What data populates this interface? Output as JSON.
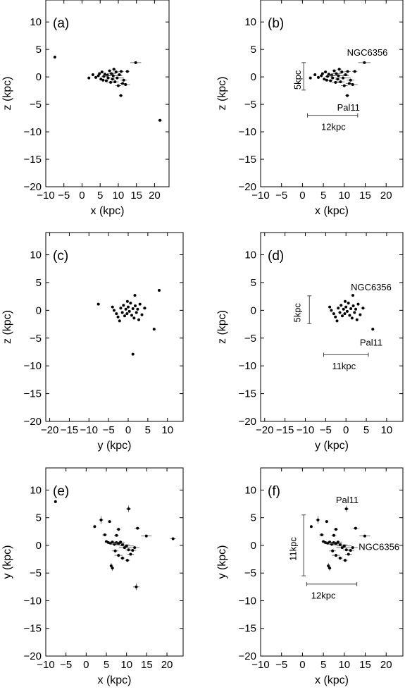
{
  "chart_data": [
    {
      "panel": "(a)",
      "type": "scatter",
      "xlabel": "x (kpc)",
      "ylabel": "z (kpc)",
      "xlim": [
        -10,
        24
      ],
      "ylim": [
        -20,
        14
      ],
      "xticks": [
        -10,
        -5,
        0,
        5,
        10,
        15,
        20
      ],
      "yticks": [
        -20,
        -15,
        -10,
        -5,
        0,
        5,
        10
      ],
      "points": [
        [
          -7.5,
          3.6,
          0.1,
          0.15
        ],
        [
          21.5,
          -7.9,
          0.6,
          0.2
        ],
        [
          14.8,
          2.6,
          1.5,
          0.2
        ],
        [
          10.7,
          -3.4,
          0.5,
          0.15
        ],
        [
          1.9,
          -0.2,
          0,
          0
        ],
        [
          3.0,
          0.4,
          0.3,
          0
        ],
        [
          3.8,
          -0.1,
          0.3,
          0
        ],
        [
          4.5,
          0.2,
          0.3,
          0
        ],
        [
          4.8,
          0.6,
          0.3,
          0
        ],
        [
          5.2,
          -0.4,
          0.3,
          0
        ],
        [
          5.5,
          0.9,
          0.4,
          0
        ],
        [
          5.8,
          -0.6,
          0.4,
          0
        ],
        [
          6.0,
          0.1,
          0.6,
          0
        ],
        [
          6.3,
          0.5,
          0.4,
          0
        ],
        [
          6.7,
          -0.7,
          0.5,
          0
        ],
        [
          7.0,
          0.3,
          0.8,
          0
        ],
        [
          7.2,
          -0.2,
          0.6,
          0
        ],
        [
          7.6,
          1.1,
          0.5,
          0
        ],
        [
          7.9,
          -1.0,
          0.9,
          0
        ],
        [
          8.1,
          0.6,
          1.2,
          0
        ],
        [
          8.4,
          -0.4,
          0.6,
          0
        ],
        [
          8.6,
          0.2,
          2.5,
          0
        ],
        [
          8.8,
          1.4,
          0.5,
          0
        ],
        [
          9.1,
          -0.9,
          1.0,
          0
        ],
        [
          9.4,
          0.9,
          0.7,
          0
        ],
        [
          9.7,
          -0.2,
          1.8,
          0
        ],
        [
          10.0,
          -1.6,
          0.8,
          0
        ],
        [
          10.3,
          0.4,
          0.6,
          0
        ],
        [
          10.8,
          1.0,
          0.7,
          0
        ],
        [
          11.2,
          -1.2,
          0.8,
          0
        ],
        [
          11.5,
          -0.6,
          0.9,
          0
        ],
        [
          12.5,
          1.0,
          0.6,
          0
        ],
        [
          12.0,
          -1.4,
          1.2,
          0
        ]
      ],
      "annotations": []
    },
    {
      "panel": "(b)",
      "type": "scatter",
      "xlabel": "x (kpc)",
      "ylabel": "z (kpc)",
      "xlim": [
        -10,
        24
      ],
      "ylim": [
        -20,
        14
      ],
      "xticks": [
        -10,
        -5,
        0,
        5,
        10,
        15,
        20
      ],
      "yticks": [
        -20,
        -15,
        -10,
        -5,
        0,
        5,
        10
      ],
      "points": [
        [
          14.8,
          2.6,
          1.5,
          0.2
        ],
        [
          10.7,
          -3.4,
          0.5,
          0.15
        ],
        [
          1.9,
          -0.2,
          0,
          0
        ],
        [
          3.0,
          0.4,
          0.3,
          0
        ],
        [
          3.8,
          -0.1,
          0.3,
          0
        ],
        [
          4.5,
          0.2,
          0.3,
          0
        ],
        [
          4.8,
          0.6,
          0.3,
          0
        ],
        [
          5.2,
          -0.4,
          0.3,
          0
        ],
        [
          5.5,
          0.9,
          0.4,
          0
        ],
        [
          5.8,
          -0.6,
          0.4,
          0
        ],
        [
          6.0,
          0.1,
          0.6,
          0
        ],
        [
          6.3,
          0.5,
          0.4,
          0
        ],
        [
          6.7,
          -0.7,
          0.5,
          0
        ],
        [
          7.0,
          0.3,
          0.8,
          0
        ],
        [
          7.2,
          -0.2,
          0.6,
          0
        ],
        [
          7.6,
          1.1,
          0.5,
          0
        ],
        [
          7.9,
          -1.0,
          0.9,
          0
        ],
        [
          8.1,
          0.6,
          1.2,
          0
        ],
        [
          8.4,
          -0.4,
          0.6,
          0
        ],
        [
          8.6,
          0.2,
          2.5,
          0
        ],
        [
          8.8,
          1.4,
          0.5,
          0
        ],
        [
          9.1,
          -0.9,
          1.0,
          0
        ],
        [
          9.4,
          0.9,
          0.7,
          0
        ],
        [
          9.7,
          -0.2,
          1.8,
          0
        ],
        [
          10.0,
          -1.6,
          0.8,
          0
        ],
        [
          10.3,
          0.4,
          0.6,
          0
        ],
        [
          10.8,
          1.0,
          0.7,
          0
        ],
        [
          11.2,
          -1.2,
          0.8,
          0
        ],
        [
          11.5,
          -0.6,
          0.9,
          0
        ],
        [
          12.5,
          1.0,
          0.6,
          0
        ],
        [
          12.0,
          -1.4,
          1.2,
          0
        ]
      ],
      "annotations": [
        {
          "text": "NGC6356",
          "x": 15.5,
          "y": 4.5
        },
        {
          "text": "Pal11",
          "x": 11.0,
          "y": -5.5
        },
        {
          "text": "5kpc",
          "x": -0.4,
          "y": 0.1,
          "rotate": true
        },
        {
          "text": "12kpc",
          "x": 7.4,
          "y": -9.0
        }
      ],
      "scalebars": [
        {
          "orient": "v",
          "at": 0.3,
          "from": -2.4,
          "to": 2.6
        },
        {
          "orient": "h",
          "at": -7.0,
          "from": 1.2,
          "to": 13.2
        }
      ]
    },
    {
      "panel": "(c)",
      "type": "scatter",
      "xlabel": "y (kpc)",
      "ylabel": "z (kpc)",
      "xlim": [
        -21,
        14
      ],
      "ylim": [
        -20,
        14
      ],
      "xticks": [
        -20,
        -15,
        -10,
        -5,
        0,
        5,
        10
      ],
      "yticks": [
        -20,
        -15,
        -10,
        -5,
        0,
        5,
        10
      ],
      "points": [
        [
          -7.6,
          1.1,
          0.4,
          0
        ],
        [
          7.9,
          3.6,
          0,
          0
        ],
        [
          1.2,
          -7.9,
          0,
          0
        ],
        [
          1.7,
          2.7,
          0,
          0
        ],
        [
          6.6,
          -3.4,
          0.3,
          0
        ],
        [
          -4.0,
          0.6,
          0,
          0
        ],
        [
          -3.6,
          0.0,
          0,
          0
        ],
        [
          -3.0,
          -0.6,
          0,
          0
        ],
        [
          -2.6,
          -1.2,
          0,
          0
        ],
        [
          -2.2,
          -1.9,
          0,
          0
        ],
        [
          -1.9,
          0.4,
          0,
          0
        ],
        [
          -1.5,
          -0.4,
          0,
          0
        ],
        [
          -1.2,
          0.9,
          0,
          0
        ],
        [
          -0.9,
          -1.0,
          0,
          0
        ],
        [
          -0.6,
          0.2,
          0.3,
          0
        ],
        [
          -0.3,
          -0.6,
          0,
          0
        ],
        [
          0.0,
          0.6,
          0,
          0
        ],
        [
          0.3,
          -0.2,
          0.3,
          0
        ],
        [
          0.6,
          1.3,
          0,
          0
        ],
        [
          0.9,
          -0.9,
          0,
          0
        ],
        [
          1.2,
          0.3,
          0.3,
          0
        ],
        [
          1.5,
          -1.4,
          0,
          0
        ],
        [
          1.8,
          0.8,
          0,
          0
        ],
        [
          2.1,
          -0.4,
          0,
          0
        ],
        [
          2.4,
          0.2,
          0.3,
          0
        ],
        [
          3.0,
          1.1,
          0,
          0
        ],
        [
          3.5,
          -0.8,
          0,
          0
        ],
        [
          4.2,
          0.4,
          0.5,
          0
        ],
        [
          2.7,
          -1.7,
          0,
          0
        ],
        [
          -0.2,
          1.6,
          0,
          0
        ]
      ],
      "annotations": []
    },
    {
      "panel": "(d)",
      "type": "scatter",
      "xlabel": "y (kpc)",
      "ylabel": "z (kpc)",
      "xlim": [
        -21,
        14
      ],
      "ylim": [
        -20,
        14
      ],
      "xticks": [
        -20,
        -15,
        -10,
        -5,
        0,
        5,
        10
      ],
      "yticks": [
        -20,
        -15,
        -10,
        -5,
        0,
        5,
        10
      ],
      "points": [
        [
          1.7,
          2.7,
          0,
          0
        ],
        [
          6.6,
          -3.4,
          0.3,
          0
        ],
        [
          -4.0,
          0.6,
          0,
          0
        ],
        [
          -3.6,
          0.0,
          0,
          0
        ],
        [
          -3.0,
          -0.6,
          0,
          0
        ],
        [
          -2.6,
          -1.2,
          0,
          0
        ],
        [
          -2.2,
          -1.9,
          0,
          0
        ],
        [
          -1.9,
          0.4,
          0,
          0
        ],
        [
          -1.5,
          -0.4,
          0,
          0
        ],
        [
          -1.2,
          0.9,
          0,
          0
        ],
        [
          -0.9,
          -1.0,
          0,
          0
        ],
        [
          -0.6,
          0.2,
          0.3,
          0
        ],
        [
          -0.3,
          -0.6,
          0,
          0
        ],
        [
          0.0,
          0.6,
          0,
          0
        ],
        [
          0.3,
          -0.2,
          0.3,
          0
        ],
        [
          0.6,
          1.3,
          0,
          0
        ],
        [
          0.9,
          -0.9,
          0,
          0
        ],
        [
          1.2,
          0.3,
          0.3,
          0
        ],
        [
          1.5,
          -1.4,
          0,
          0
        ],
        [
          1.8,
          0.8,
          0,
          0
        ],
        [
          2.1,
          -0.4,
          0,
          0
        ],
        [
          2.4,
          0.2,
          0.3,
          0
        ],
        [
          3.0,
          1.1,
          0,
          0
        ],
        [
          3.5,
          -0.8,
          0,
          0
        ],
        [
          4.2,
          0.4,
          0.5,
          0
        ],
        [
          2.7,
          -1.7,
          0,
          0
        ],
        [
          -0.2,
          1.6,
          0,
          0
        ]
      ],
      "annotations": [
        {
          "text": "NGC6356",
          "x": 6.2,
          "y": 4.2
        },
        {
          "text": "Pal11",
          "x": 6.2,
          "y": -5.7
        },
        {
          "text": "5kpc",
          "x": -11.2,
          "y": 0.2,
          "rotate": true
        },
        {
          "text": "11kpc",
          "x": -0.5,
          "y": -10.0
        }
      ],
      "scalebars": [
        {
          "orient": "v",
          "at": -9.0,
          "from": -2.4,
          "to": 2.6
        },
        {
          "orient": "h",
          "at": -8.0,
          "from": -5.5,
          "to": 5.5
        }
      ]
    },
    {
      "panel": "(e)",
      "type": "scatter",
      "xlabel": "x (kpc)",
      "ylabel": "y (kpc)",
      "xlim": [
        -10,
        24
      ],
      "ylim": [
        -20,
        14
      ],
      "xticks": [
        -10,
        -5,
        0,
        5,
        10,
        15,
        20
      ],
      "yticks": [
        -20,
        -15,
        -10,
        -5,
        0,
        5,
        10
      ],
      "points": [
        [
          -7.6,
          7.9,
          0,
          0
        ],
        [
          10.5,
          6.6,
          0.6,
          0.6
        ],
        [
          12.4,
          -7.5,
          0.8,
          0.6
        ],
        [
          21.5,
          1.2,
          0.7,
          0
        ],
        [
          14.9,
          1.7,
          1.3,
          0
        ],
        [
          3.7,
          4.6,
          0.5,
          0.7
        ],
        [
          5.8,
          4.3,
          0.4,
          0
        ],
        [
          2.1,
          3.4,
          0,
          0
        ],
        [
          12.7,
          3.1,
          0.7,
          0
        ],
        [
          8.0,
          2.9,
          0.5,
          0.3
        ],
        [
          4.6,
          1.9,
          0.6,
          0
        ],
        [
          7.5,
          1.8,
          0.6,
          0
        ],
        [
          5.0,
          0.7,
          0.4,
          0
        ],
        [
          5.5,
          0.5,
          0.6,
          0
        ],
        [
          6.0,
          0.4,
          0.6,
          0
        ],
        [
          6.5,
          0.6,
          0.8,
          0
        ],
        [
          7.0,
          0.2,
          0.8,
          0.3
        ],
        [
          7.5,
          0.5,
          1.0,
          0
        ],
        [
          8.0,
          0.3,
          1.4,
          0.3
        ],
        [
          8.5,
          0.6,
          1.0,
          0
        ],
        [
          9.0,
          0.1,
          1.8,
          0
        ],
        [
          9.5,
          -0.4,
          1.4,
          0
        ],
        [
          10.0,
          -0.1,
          1.8,
          0
        ],
        [
          10.5,
          -0.8,
          0.8,
          0
        ],
        [
          11.0,
          -1.6,
          0.8,
          0
        ],
        [
          11.5,
          -0.9,
          0.9,
          0
        ],
        [
          12.0,
          -0.4,
          1.2,
          0
        ],
        [
          7.2,
          -1.0,
          0.8,
          0.3
        ],
        [
          8.0,
          -1.8,
          1.0,
          0.3
        ],
        [
          9.0,
          -2.3,
          0.6,
          0.3
        ],
        [
          10.2,
          -2.7,
          0.6,
          0.3
        ],
        [
          6.2,
          -3.7,
          0.4,
          0.5
        ],
        [
          6.5,
          -4.1,
          0.4,
          0.5
        ]
      ],
      "annotations": []
    },
    {
      "panel": "(f)",
      "type": "scatter",
      "xlabel": "x (kpc)",
      "ylabel": "y (kpc)",
      "xlim": [
        -10,
        24
      ],
      "ylim": [
        -20,
        14
      ],
      "xticks": [
        -10,
        -5,
        0,
        5,
        10,
        15,
        20
      ],
      "yticks": [
        -20,
        -15,
        -10,
        -5,
        0,
        5,
        10
      ],
      "points": [
        [
          10.5,
          6.6,
          0.6,
          0.6
        ],
        [
          14.9,
          1.7,
          1.3,
          0
        ],
        [
          3.7,
          4.6,
          0.5,
          0.7
        ],
        [
          5.8,
          4.3,
          0.4,
          0
        ],
        [
          2.1,
          3.4,
          0,
          0
        ],
        [
          12.7,
          3.1,
          0.7,
          0
        ],
        [
          8.0,
          2.9,
          0.5,
          0.3
        ],
        [
          4.6,
          1.9,
          0.6,
          0
        ],
        [
          7.5,
          1.8,
          0.6,
          0
        ],
        [
          5.0,
          0.7,
          0.4,
          0
        ],
        [
          5.5,
          0.5,
          0.6,
          0
        ],
        [
          6.0,
          0.4,
          0.6,
          0
        ],
        [
          6.5,
          0.6,
          0.8,
          0
        ],
        [
          7.0,
          0.2,
          0.8,
          0.3
        ],
        [
          7.5,
          0.5,
          1.0,
          0
        ],
        [
          8.0,
          0.3,
          1.4,
          0.3
        ],
        [
          8.5,
          0.6,
          1.0,
          0
        ],
        [
          9.0,
          0.1,
          1.8,
          0
        ],
        [
          9.5,
          -0.4,
          1.4,
          0
        ],
        [
          10.0,
          -0.1,
          1.8,
          0
        ],
        [
          10.5,
          -0.8,
          0.8,
          0
        ],
        [
          11.0,
          -1.6,
          0.8,
          0
        ],
        [
          11.5,
          -0.9,
          0.9,
          0
        ],
        [
          12.0,
          -0.4,
          1.2,
          0
        ],
        [
          7.2,
          -1.0,
          0.8,
          0.3
        ],
        [
          8.0,
          -1.8,
          1.0,
          0.3
        ],
        [
          9.0,
          -2.3,
          0.6,
          0.3
        ],
        [
          10.2,
          -2.7,
          0.6,
          0.3
        ],
        [
          6.2,
          -3.7,
          0.4,
          0.5
        ],
        [
          6.5,
          -4.1,
          0.4,
          0.5
        ]
      ],
      "annotations": [
        {
          "text": "Pal11",
          "x": 10.7,
          "y": 8.3
        },
        {
          "text": "NGC6356",
          "x": 18.3,
          "y": -0.2
        },
        {
          "text": "11kpc",
          "x": -1.5,
          "y": 0.0,
          "rotate": true
        },
        {
          "text": "12kpc",
          "x": 5.0,
          "y": -9.0
        }
      ],
      "scalebars": [
        {
          "orient": "v",
          "at": 0.3,
          "from": -5.5,
          "to": 5.5
        },
        {
          "orient": "h",
          "at": -7.0,
          "from": 1.0,
          "to": 13.0
        }
      ]
    }
  ]
}
